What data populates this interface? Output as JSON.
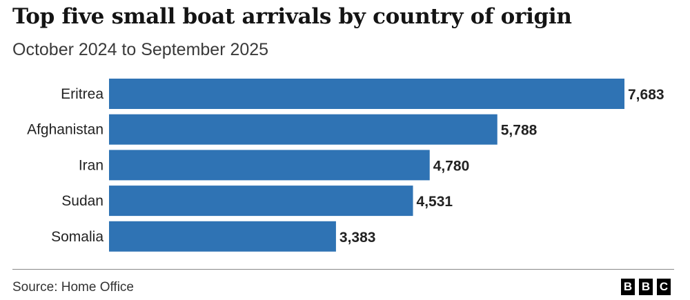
{
  "chart_data": {
    "type": "bar",
    "orientation": "horizontal",
    "title": "Top five small boat arrivals by country of origin",
    "subtitle": "October 2024 to September 2025",
    "categories": [
      "Eritrea",
      "Afghanistan",
      "Iran",
      "Sudan",
      "Somalia"
    ],
    "values": [
      7683,
      5788,
      4780,
      4531,
      3383
    ],
    "value_labels": [
      "7,683",
      "5,788",
      "4,780",
      "4,531",
      "3,383"
    ],
    "xlabel": "",
    "ylabel": "",
    "xlim": [
      0,
      7683
    ],
    "grid": false,
    "bar_color": "#2f73b4"
  },
  "footer": {
    "source": "Source: Home Office",
    "logo": [
      "B",
      "B",
      "C"
    ]
  }
}
